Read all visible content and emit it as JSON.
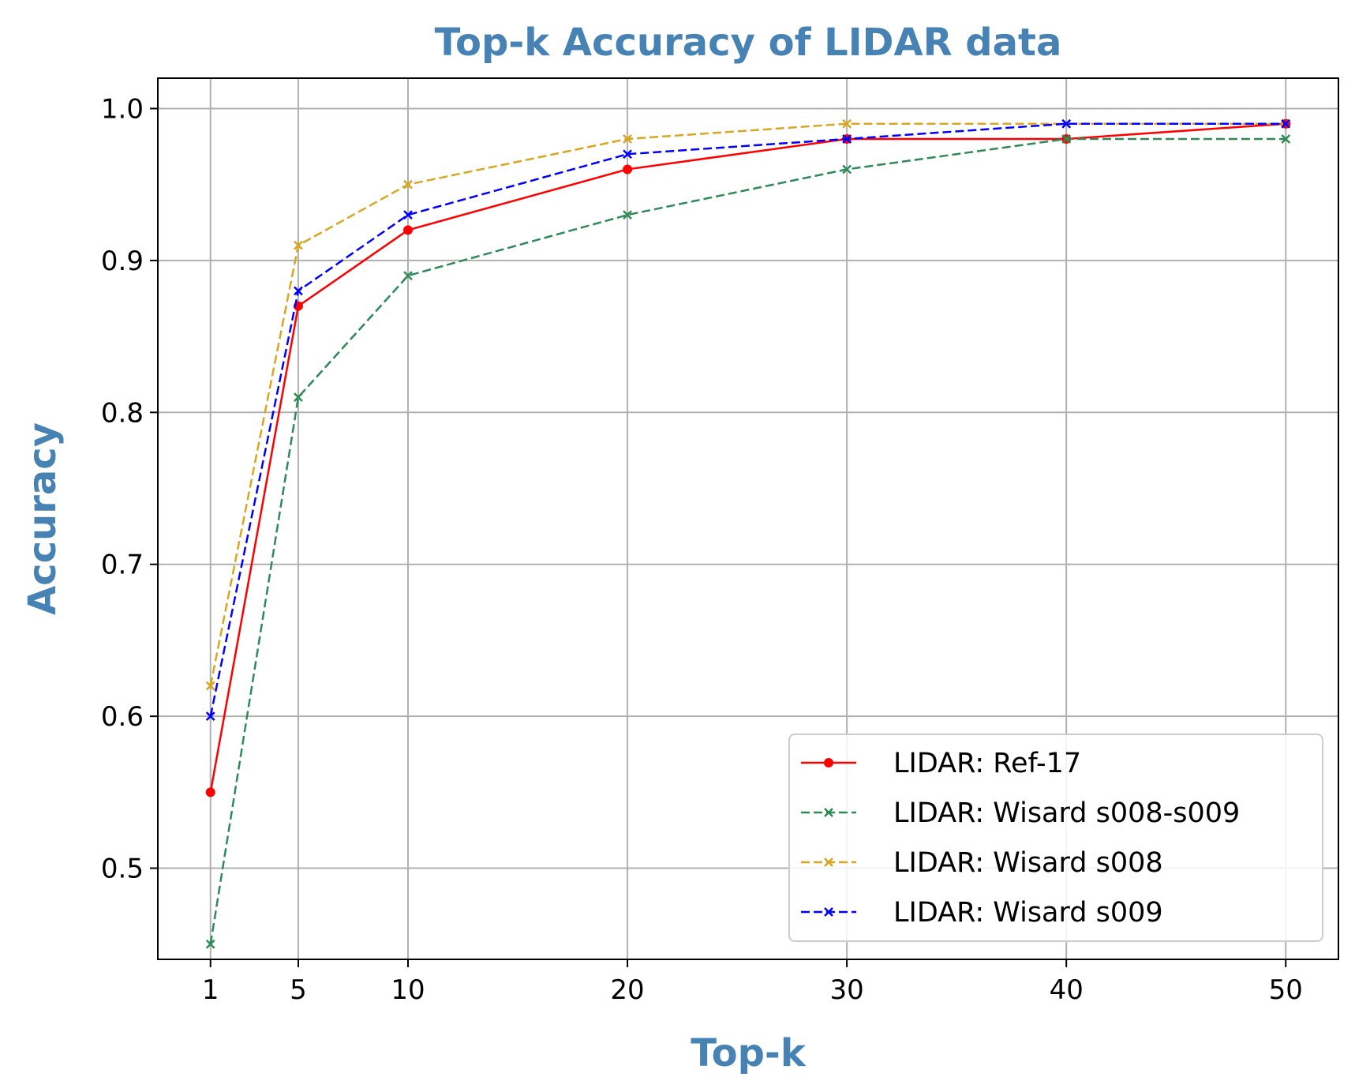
{
  "chart_data": {
    "type": "line",
    "title": "Top-k Accuracy of LIDAR data",
    "xlabel": "Top-k",
    "ylabel": "Accuracy",
    "x": [
      1,
      5,
      10,
      20,
      30,
      40,
      50
    ],
    "xticks": [
      "1",
      "5",
      "10",
      "20",
      "30",
      "40",
      "50"
    ],
    "yticks": [
      "0.5",
      "0.6",
      "0.7",
      "0.8",
      "0.9",
      "1.0"
    ],
    "ylim": [
      0.44,
      1.02
    ],
    "xlim": [
      -1.4,
      52.4
    ],
    "grid": true,
    "legend_position": "lower-right",
    "series": [
      {
        "name": "LIDAR: Ref-17",
        "color": "#ff0000",
        "dash": "solid",
        "marker": "dot",
        "values": [
          0.55,
          0.87,
          0.92,
          0.96,
          0.98,
          0.98,
          0.99
        ]
      },
      {
        "name": "LIDAR: Wisard s008-s009",
        "color": "#2e8b57",
        "dash": "dashed",
        "marker": "x",
        "values": [
          0.45,
          0.81,
          0.89,
          0.93,
          0.96,
          0.98,
          0.98
        ]
      },
      {
        "name": "LIDAR: Wisard s008",
        "color": "#daa520",
        "dash": "dashed",
        "marker": "x",
        "values": [
          0.62,
          0.91,
          0.95,
          0.98,
          0.99,
          0.99,
          0.99
        ]
      },
      {
        "name": "LIDAR: Wisard s009",
        "color": "#0000ff",
        "dash": "dashed",
        "marker": "x",
        "values": [
          0.6,
          0.88,
          0.93,
          0.97,
          0.98,
          0.99,
          0.99
        ]
      }
    ]
  }
}
